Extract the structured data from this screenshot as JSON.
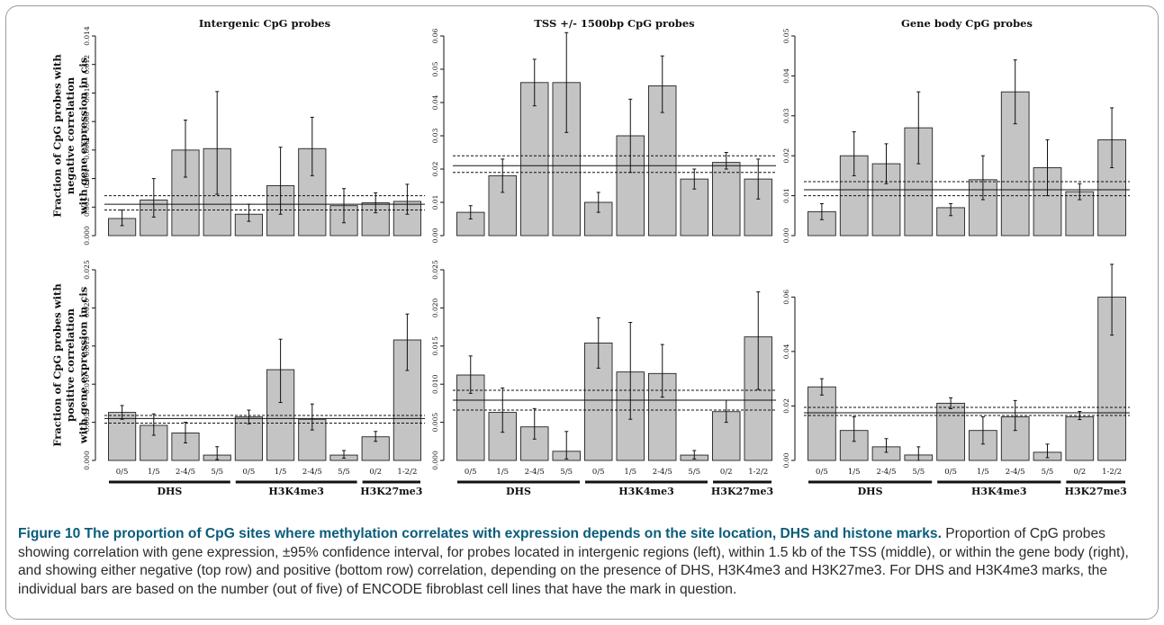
{
  "y_axis_labels": {
    "top": [
      "Fraction of CpG probes with",
      "negative correlation",
      "with gene expression in cis"
    ],
    "bottom": [
      "Fraction of CpG probes with",
      "positive correlation",
      "with gene expression in cis"
    ]
  },
  "categories": [
    "0/5",
    "1/5",
    "2-4/5",
    "5/5",
    "0/5",
    "1/5",
    "2-4/5",
    "5/5",
    "0/2",
    "1-2/2"
  ],
  "groups": [
    {
      "name": "DHS",
      "first": 0,
      "last": 3
    },
    {
      "name": "H3K4me3",
      "first": 4,
      "last": 7
    },
    {
      "name": "H3K27me3",
      "first": 8,
      "last": 9
    }
  ],
  "chart_data": [
    {
      "type": "bar",
      "title": "Intergenic CpG probes",
      "row": 0,
      "col": 0,
      "ylim": [
        0,
        0.014
      ],
      "yticks": [
        0,
        0.002,
        0.004,
        0.006,
        0.008,
        0.01,
        0.012,
        0.014
      ],
      "ytick_labels": [
        "0.000",
        "0.002",
        "0.004",
        "0.006",
        "0.008",
        "0.010",
        "0.012",
        "0.014"
      ],
      "values": [
        0.0012,
        0.0025,
        0.006,
        0.0061,
        0.0015,
        0.0035,
        0.0061,
        0.0021,
        0.0023,
        0.0024
      ],
      "ci_low": [
        0.0007,
        0.0013,
        0.0041,
        0.0029,
        0.001,
        0.0015,
        0.0042,
        0.0009,
        0.0016,
        0.0015
      ],
      "ci_high": [
        0.0018,
        0.004,
        0.0081,
        0.0101,
        0.0022,
        0.0062,
        0.0083,
        0.0033,
        0.003,
        0.0036
      ],
      "hline": 0.0022,
      "hline_ci": [
        0.0018,
        0.0028
      ]
    },
    {
      "type": "bar",
      "title": "TSS +/- 1500bp CpG probes",
      "row": 0,
      "col": 1,
      "ylim": [
        0,
        0.06
      ],
      "yticks": [
        0,
        0.01,
        0.02,
        0.03,
        0.04,
        0.05,
        0.06
      ],
      "ytick_labels": [
        "0.00",
        "0.01",
        "0.02",
        "0.03",
        "0.04",
        "0.05",
        "0.06"
      ],
      "values": [
        0.007,
        0.018,
        0.046,
        0.046,
        0.01,
        0.03,
        0.045,
        0.017,
        0.022,
        0.017
      ],
      "ci_low": [
        0.005,
        0.013,
        0.039,
        0.031,
        0.007,
        0.019,
        0.037,
        0.014,
        0.02,
        0.011
      ],
      "ci_high": [
        0.009,
        0.023,
        0.053,
        0.061,
        0.013,
        0.041,
        0.054,
        0.02,
        0.025,
        0.023
      ],
      "hline": 0.021,
      "hline_ci": [
        0.019,
        0.024
      ]
    },
    {
      "type": "bar",
      "title": "Gene body CpG probes",
      "row": 0,
      "col": 2,
      "ylim": [
        0,
        0.05
      ],
      "yticks": [
        0,
        0.01,
        0.02,
        0.03,
        0.04,
        0.05
      ],
      "ytick_labels": [
        "0.00",
        "0.01",
        "0.02",
        "0.03",
        "0.04",
        "0.05"
      ],
      "values": [
        0.006,
        0.02,
        0.018,
        0.027,
        0.007,
        0.014,
        0.036,
        0.017,
        0.011,
        0.024
      ],
      "ci_low": [
        0.004,
        0.015,
        0.013,
        0.018,
        0.005,
        0.009,
        0.028,
        0.01,
        0.009,
        0.017
      ],
      "ci_high": [
        0.008,
        0.026,
        0.023,
        0.036,
        0.008,
        0.02,
        0.044,
        0.024,
        0.013,
        0.032
      ],
      "hline": 0.0115,
      "hline_ci": [
        0.01,
        0.0135
      ]
    },
    {
      "type": "bar",
      "title": "",
      "row": 1,
      "col": 0,
      "ylim": [
        0,
        0.025
      ],
      "yticks": [
        0,
        0.005,
        0.01,
        0.015,
        0.02,
        0.025
      ],
      "ytick_labels": [
        "0.000",
        "0.005",
        "0.010",
        "0.015",
        "0.020",
        "0.025"
      ],
      "values": [
        0.0063,
        0.0046,
        0.0036,
        0.0007,
        0.0057,
        0.0119,
        0.0054,
        0.0007,
        0.0031,
        0.0158
      ],
      "ci_low": [
        0.0054,
        0.0033,
        0.0023,
        0.0001,
        0.0048,
        0.0076,
        0.004,
        0.0003,
        0.0025,
        0.0118
      ],
      "ci_high": [
        0.0072,
        0.0061,
        0.005,
        0.0018,
        0.0066,
        0.0159,
        0.0074,
        0.0013,
        0.0038,
        0.0192
      ],
      "hline": 0.0055,
      "hline_ci": [
        0.0049,
        0.0059
      ]
    },
    {
      "type": "bar",
      "title": "",
      "row": 1,
      "col": 1,
      "ylim": [
        0,
        0.025
      ],
      "yticks": [
        0,
        0.005,
        0.01,
        0.015,
        0.02,
        0.025
      ],
      "ytick_labels": [
        "0.000",
        "0.005",
        "0.010",
        "0.015",
        "0.020",
        "0.025"
      ],
      "values": [
        0.0112,
        0.0063,
        0.0044,
        0.0012,
        0.0154,
        0.0116,
        0.0114,
        0.0007,
        0.0064,
        0.0162
      ],
      "ci_low": [
        0.0088,
        0.0037,
        0.0028,
        0.0002,
        0.0121,
        0.0054,
        0.0083,
        0.0002,
        0.005,
        0.0093
      ],
      "ci_high": [
        0.0137,
        0.0095,
        0.0068,
        0.0038,
        0.0187,
        0.0181,
        0.0152,
        0.0013,
        0.0079,
        0.0221
      ],
      "hline": 0.0079,
      "hline_ci": [
        0.0066,
        0.0092
      ]
    },
    {
      "type": "bar",
      "title": "",
      "row": 1,
      "col": 2,
      "ylim": [
        0,
        0.07
      ],
      "yticks": [
        0,
        0.02,
        0.04,
        0.06
      ],
      "ytick_labels": [
        "0.00",
        "0.02",
        "0.04",
        "0.06"
      ],
      "values": [
        0.027,
        0.011,
        0.005,
        0.002,
        0.021,
        0.011,
        0.016,
        0.003,
        0.016,
        0.06
      ],
      "ci_low": [
        0.024,
        0.007,
        0.003,
        0.0,
        0.019,
        0.006,
        0.011,
        0.001,
        0.015,
        0.046
      ],
      "ci_high": [
        0.03,
        0.016,
        0.008,
        0.005,
        0.023,
        0.016,
        0.022,
        0.006,
        0.018,
        0.072
      ],
      "hline": 0.0175,
      "hline_ci": [
        0.0165,
        0.0195
      ]
    }
  ],
  "caption": {
    "title": "Figure 10 The proportion of CpG sites where methylation correlates with expression depends on the site location, DHS and histone marks.",
    "body": " Proportion of CpG probes showing correlation with gene expression, ±95% confidence interval, for probes located in intergenic regions (left), within 1.5 kb of the TSS (middle), or within the gene body (right), and showing either negative (top row) and positive (bottom row) correlation, depending on the presence of DHS, H3K4me3 and H3K27me3. For DHS and H3K4me3 marks, the individual bars are based on the number (out of five) of ENCODE fibroblast cell lines that have the mark in question."
  }
}
